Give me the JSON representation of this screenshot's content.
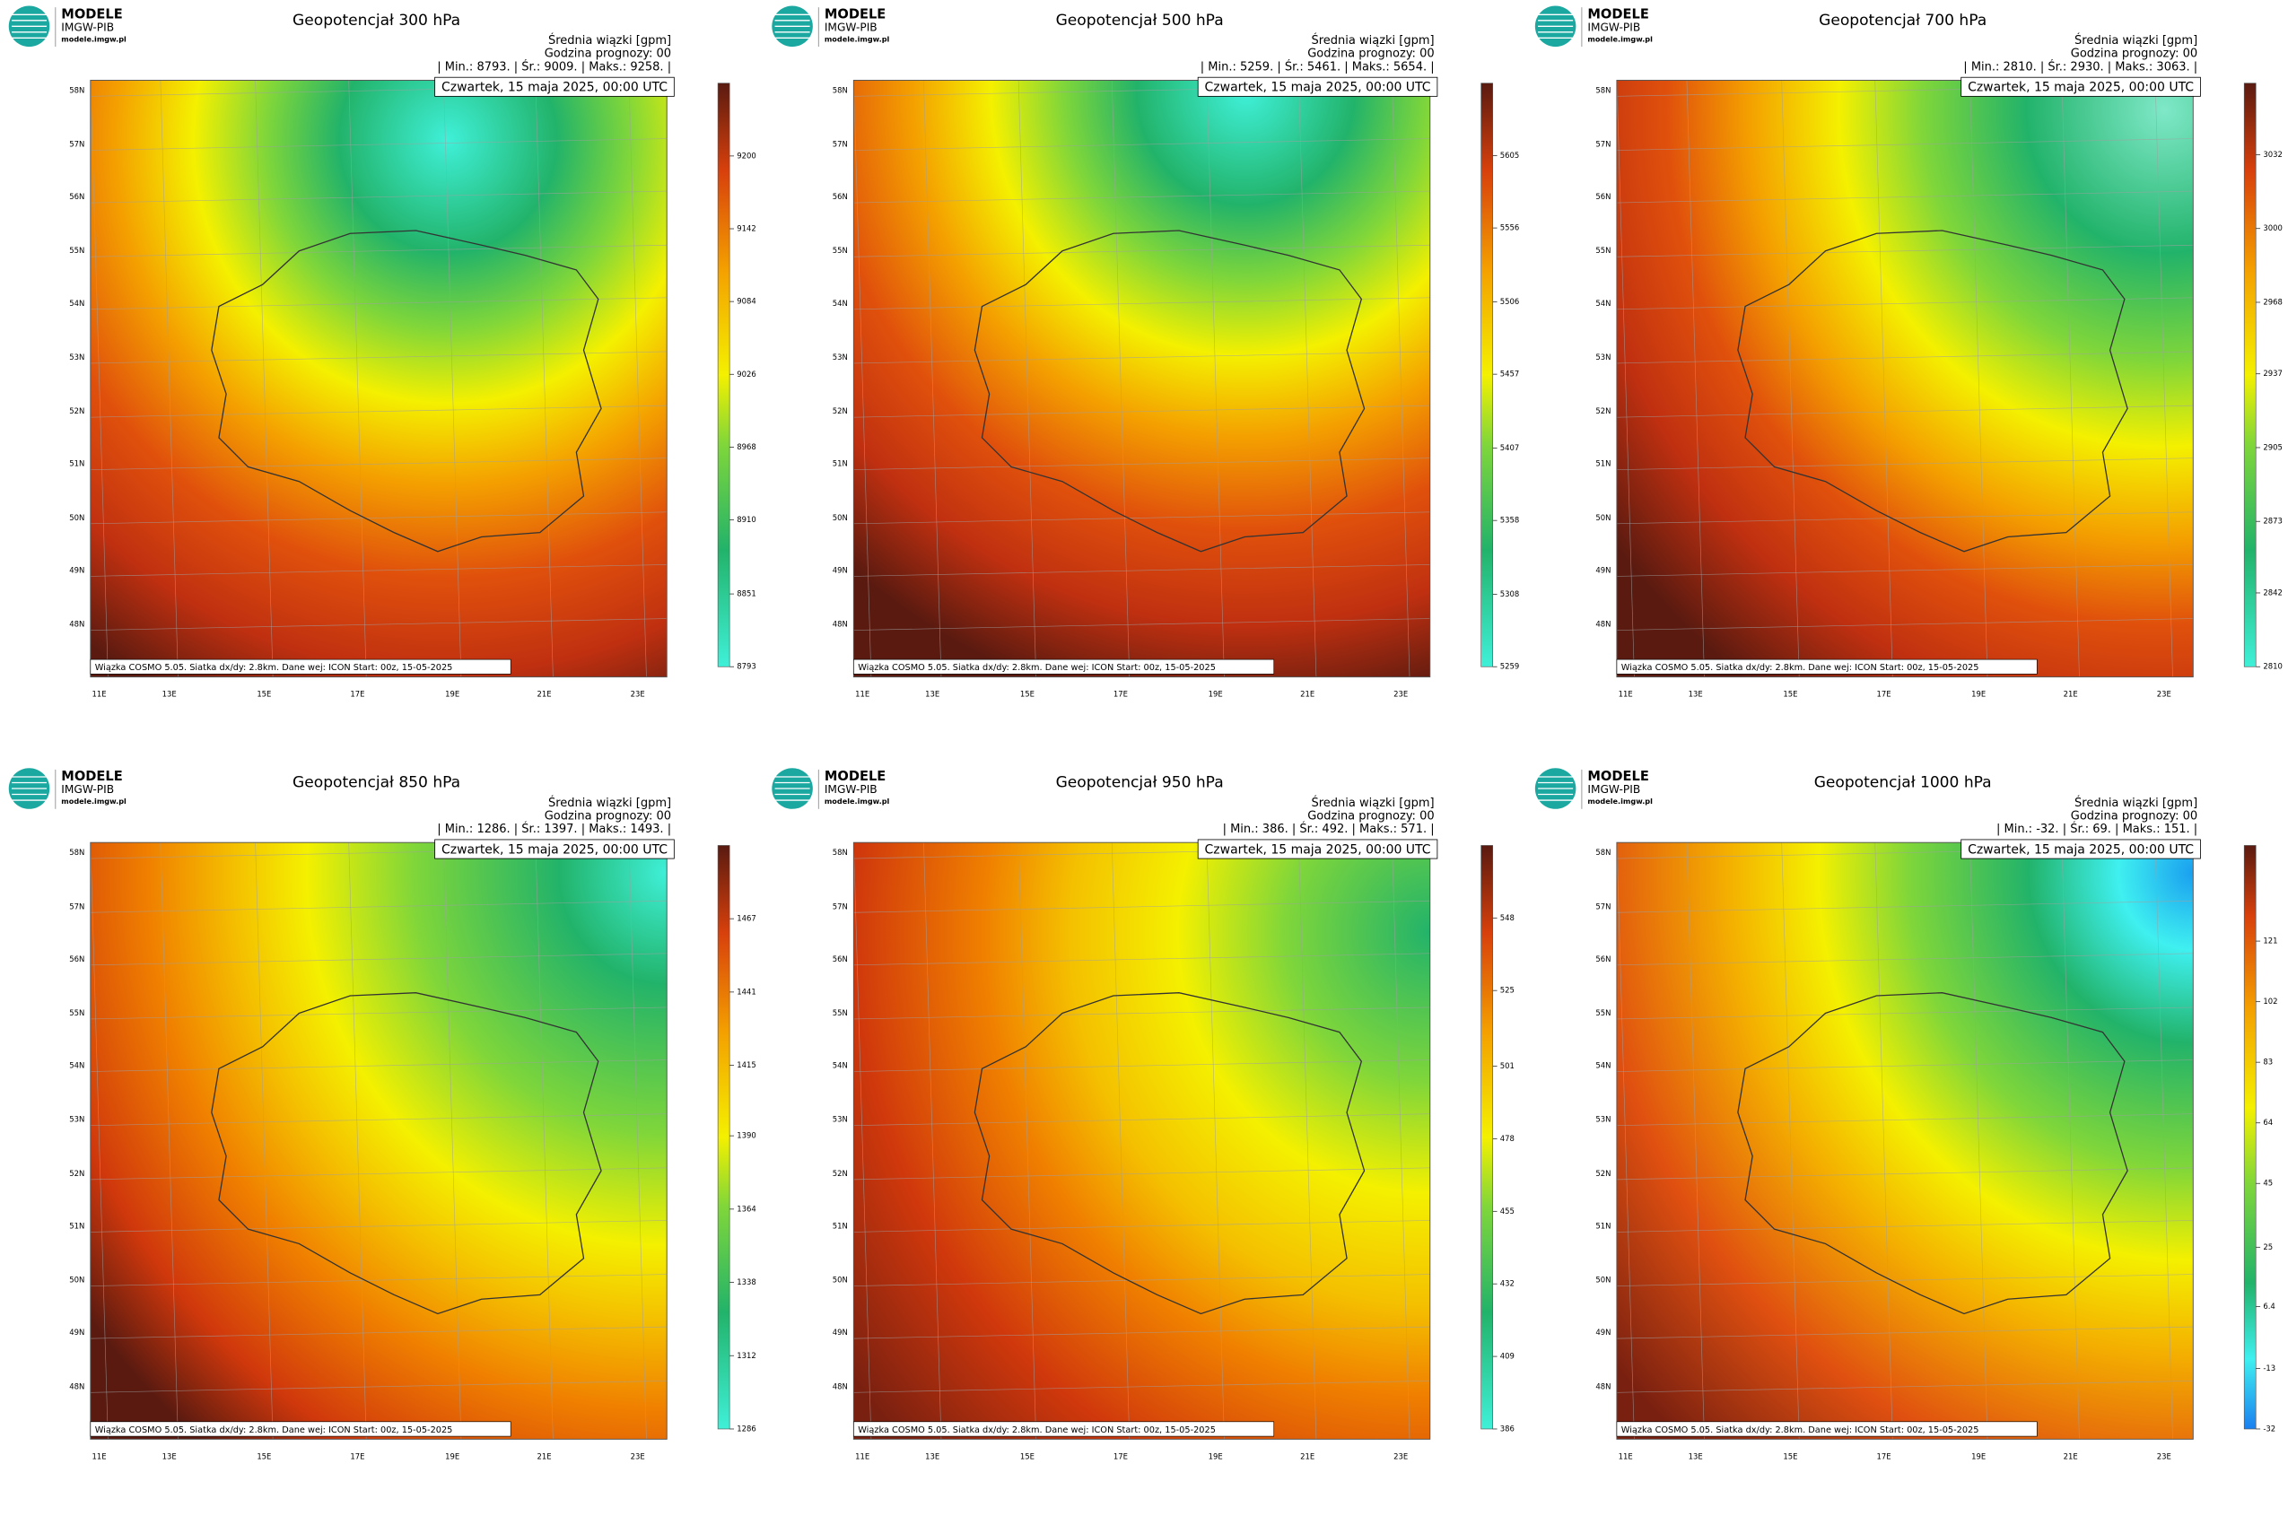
{
  "logo": {
    "name": "MODELE",
    "org": "IMGW-PIB",
    "url": "modele.imgw.pl"
  },
  "header": "Średnia wiązki [gpm]",
  "forecast_hour": "Godzina prognozy: 00",
  "date": "Czwartek, 15 maja 2025, 00:00 UTC",
  "footer": "Wiązka COSMO 5.05. Siatka dx/dy: 2.8km. Dane wej: ICON Start: 00z, 15-05-2025",
  "lat_labels": [
    "58N",
    "57N",
    "56N",
    "55N",
    "54N",
    "53N",
    "52N",
    "51N",
    "50N",
    "49N",
    "48N"
  ],
  "lon_labels": [
    "11E",
    "13E",
    "15E",
    "17E",
    "19E",
    "21E",
    "23E"
  ],
  "panels": [
    {
      "title": "Geopotencjał 300 hPa",
      "stats": "| Min.:   8793. | Śr.:   9009. | Maks.:   9258. |",
      "colorbar": {
        "range": [
          8793,
          9258
        ],
        "ticks": [
          8793,
          8851,
          8910,
          8968,
          9026,
          9084,
          9142,
          9200
        ]
      }
    },
    {
      "title": "Geopotencjał 500 hPa",
      "stats": "| Min.:   5259. | Śr.:   5461. | Maks.:   5654. |",
      "colorbar": {
        "range": [
          5259,
          5654
        ],
        "ticks": [
          5259,
          5308,
          5358,
          5407,
          5457,
          5506,
          5556,
          5605
        ]
      }
    },
    {
      "title": "Geopotencjał 700 hPa",
      "stats": "| Min.:   2810. | Śr.:   2930. | Maks.:   3063. |",
      "colorbar": {
        "range": [
          2810,
          3063
        ],
        "ticks": [
          2810,
          2842,
          2873,
          2905,
          2937,
          2968,
          3000,
          3032
        ]
      }
    },
    {
      "title": "Geopotencjał 850 hPa",
      "stats": "| Min.:   1286. | Śr.:   1397. | Maks.:   1493. |",
      "colorbar": {
        "range": [
          1286,
          1493
        ],
        "ticks": [
          1286,
          1312,
          1338,
          1364,
          1390,
          1415,
          1441,
          1467
        ]
      }
    },
    {
      "title": "Geopotencjał 950 hPa",
      "stats": "| Min.:   386. | Śr.:   492. | Maks.:   571. |",
      "colorbar": {
        "range": [
          386,
          571
        ],
        "ticks": [
          386,
          409,
          432,
          455,
          478,
          501,
          525,
          548
        ]
      }
    },
    {
      "title": "Geopotencjał 1000 hPa",
      "stats": "| Min.:   -32. | Śr.:   69. | Maks.:   151. |",
      "colorbar": {
        "range": [
          -32,
          151
        ],
        "ticks": [
          -32,
          -13,
          6.4,
          25,
          45,
          64,
          83,
          102,
          121
        ]
      }
    }
  ]
}
